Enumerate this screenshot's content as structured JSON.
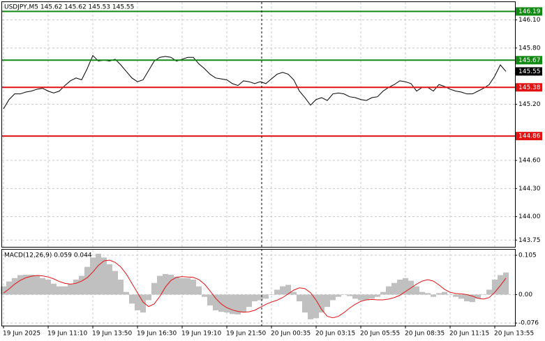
{
  "chart_data": [
    {
      "type": "line",
      "title": "USDJPY,M5  145.62 145.62 145.53 145.55",
      "color": "#000000",
      "x_labels": [
        "19 Jun 2025",
        "19 Jun 11:10",
        "19 Jun 13:50",
        "19 Jun 16:30",
        "19 Jun 19:10",
        "19 Jun 21:50",
        "20 Jun 00:35",
        "20 Jun 03:15",
        "20 Jun 05:55",
        "20 Jun 08:35",
        "20 Jun 11:15",
        "20 Jun 13:55"
      ],
      "values": [
        145.15,
        145.25,
        145.31,
        145.31,
        145.33,
        145.34,
        145.36,
        145.37,
        145.34,
        145.32,
        145.34,
        145.4,
        145.45,
        145.48,
        145.46,
        145.58,
        145.72,
        145.66,
        145.67,
        145.66,
        145.68,
        145.62,
        145.55,
        145.48,
        145.44,
        145.46,
        145.56,
        145.66,
        145.7,
        145.71,
        145.7,
        145.66,
        145.68,
        145.7,
        145.7,
        145.63,
        145.58,
        145.52,
        145.48,
        145.47,
        145.46,
        145.42,
        145.4,
        145.45,
        145.44,
        145.42,
        145.44,
        145.42,
        145.47,
        145.52,
        145.54,
        145.52,
        145.46,
        145.34,
        145.27,
        145.19,
        145.25,
        145.27,
        145.24,
        145.31,
        145.32,
        145.31,
        145.28,
        145.27,
        145.25,
        145.24,
        145.27,
        145.28,
        145.34,
        145.38,
        145.41,
        145.45,
        145.44,
        145.42,
        145.34,
        145.38,
        145.38,
        145.34,
        145.41,
        145.39,
        145.36,
        145.34,
        145.33,
        145.31,
        145.31,
        145.34,
        145.37,
        145.41,
        145.5,
        145.62,
        145.55
      ],
      "ylim": [
        143.67,
        146.29
      ],
      "yticks": [
        {
          "value": 146.1,
          "label": "146.10"
        },
        {
          "value": 145.8,
          "label": "145.80"
        },
        {
          "value": 145.2,
          "label": "145.20"
        },
        {
          "value": 144.6,
          "label": "144.60"
        },
        {
          "value": 144.3,
          "label": "144.30"
        },
        {
          "value": 144.0,
          "label": "144.00"
        },
        143.75
      ],
      "grid": true,
      "levels": [
        {
          "value": 146.19,
          "color": "#138a13"
        },
        {
          "value": 145.67,
          "color": "#138a13"
        },
        {
          "value": 145.38,
          "color": "#e31212"
        },
        {
          "value": 144.86,
          "color": "#e31212"
        }
      ],
      "current_price": 145.55
    },
    {
      "type": "macd",
      "title": "MACD(12,26,9) 0.059 0.044",
      "histogram": {
        "color": "#c0c0c0",
        "values": [
          0.022,
          0.035,
          0.044,
          0.052,
          0.053,
          0.053,
          0.052,
          0.044,
          0.04,
          0.029,
          0.022,
          0.022,
          0.028,
          0.04,
          0.05,
          0.074,
          0.099,
          0.109,
          0.099,
          0.081,
          0.063,
          0.04,
          0.007,
          -0.024,
          -0.042,
          -0.048,
          -0.015,
          0.031,
          0.05,
          0.055,
          0.053,
          0.048,
          0.044,
          0.044,
          0.04,
          0.022,
          -0.006,
          -0.029,
          -0.042,
          -0.046,
          -0.048,
          -0.052,
          -0.053,
          -0.048,
          -0.033,
          -0.018,
          -0.015,
          -0.011,
          0,
          0.013,
          0.022,
          0.026,
          0.007,
          -0.018,
          -0.048,
          -0.066,
          -0.063,
          -0.048,
          -0.033,
          -0.015,
          -0.006,
          0,
          -0.004,
          -0.011,
          -0.015,
          -0.015,
          -0.011,
          -0.006,
          0.007,
          0.022,
          0.031,
          0.04,
          0.044,
          0.037,
          0.022,
          0.007,
          0.004,
          -0.006,
          0.004,
          0.007,
          0,
          -0.006,
          -0.011,
          -0.018,
          -0.02,
          -0.011,
          0,
          0.013,
          0.04,
          0.052,
          0.059
        ]
      },
      "signal": {
        "color": "#e31212",
        "values": [
          0.004,
          0.015,
          0.028,
          0.038,
          0.045,
          0.049,
          0.051,
          0.05,
          0.047,
          0.042,
          0.035,
          0.03,
          0.028,
          0.03,
          0.036,
          0.045,
          0.06,
          0.078,
          0.09,
          0.092,
          0.086,
          0.074,
          0.055,
          0.03,
          0.005,
          -0.02,
          -0.032,
          -0.025,
          -0.005,
          0.02,
          0.038,
          0.046,
          0.048,
          0.047,
          0.046,
          0.04,
          0.028,
          0.01,
          -0.01,
          -0.025,
          -0.035,
          -0.041,
          -0.045,
          -0.047,
          -0.046,
          -0.042,
          -0.034,
          -0.026,
          -0.02,
          -0.015,
          -0.008,
          0.002,
          0.012,
          0.018,
          0.016,
          0.005,
          -0.015,
          -0.04,
          -0.058,
          -0.062,
          -0.058,
          -0.048,
          -0.036,
          -0.026,
          -0.018,
          -0.014,
          -0.013,
          -0.014,
          -0.014,
          -0.012,
          -0.008,
          -0.002,
          0.008,
          0.018,
          0.028,
          0.036,
          0.04,
          0.036,
          0.026,
          0.014,
          0.006,
          0.003,
          0.002,
          0.0,
          -0.004,
          -0.01,
          -0.012,
          -0.008,
          0.006,
          0.024,
          0.044
        ]
      },
      "ylim": [
        -0.083,
        0.12
      ],
      "yticks": [
        0.105,
        {
          "value": 0,
          "label": "0.00"
        },
        -0.076
      ],
      "grid": true
    }
  ]
}
